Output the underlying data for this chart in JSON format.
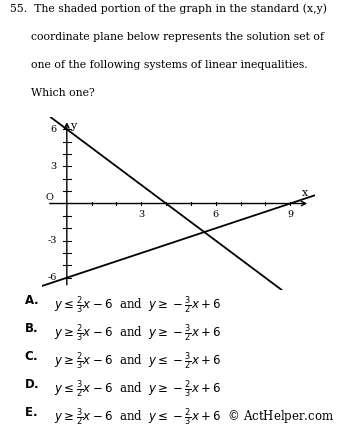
{
  "xlim": [
    -1,
    10
  ],
  "ylim": [
    -7,
    7
  ],
  "xticks": [
    3,
    6,
    9
  ],
  "yticks": [
    -6,
    -3,
    3,
    6
  ],
  "m1": 0.66667,
  "b1": -6,
  "m2": -1.5,
  "b2": 6,
  "shade_color": "#aaaaaa",
  "shade_alpha": 0.75,
  "dark_shade_color": "#777777",
  "dark_shade_alpha": 0.85,
  "bg_color": "#ffffff",
  "font_size_title": 7.8,
  "font_size_choices": 8.5,
  "font_size_axis": 8,
  "font_size_tick": 7
}
